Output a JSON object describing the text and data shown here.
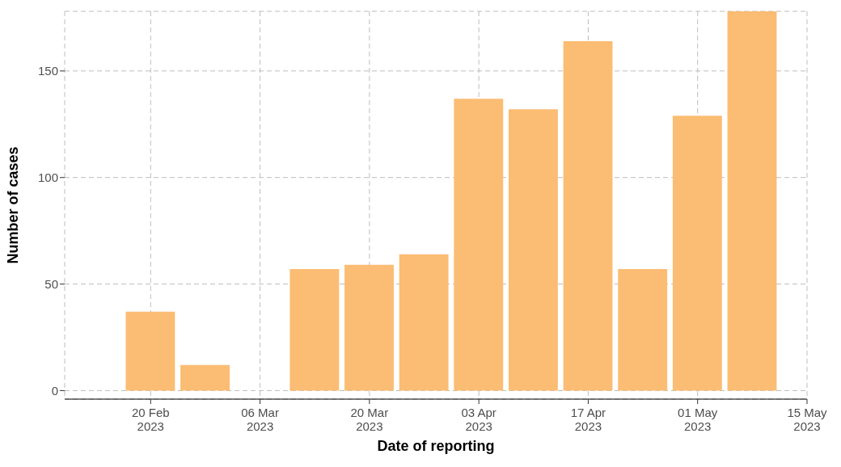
{
  "chart_data": {
    "type": "bar",
    "xlabel": "Date of reporting",
    "ylabel": "Number of cases",
    "x": [
      "2023-02-20",
      "2023-02-27",
      "2023-03-06",
      "2023-03-13",
      "2023-03-20",
      "2023-03-27",
      "2023-04-03",
      "2023-04-10",
      "2023-04-17",
      "2023-04-24",
      "2023-05-01",
      "2023-05-08"
    ],
    "values": [
      37,
      12,
      0,
      57,
      59,
      64,
      137,
      132,
      164,
      57,
      129,
      178
    ],
    "color": "#fbbc73",
    "xlim": [
      "2023-02-09",
      "2023-05-15"
    ],
    "xticks": [
      {
        "value": "2023-02-20",
        "label": "20 Feb 2023"
      },
      {
        "value": "2023-03-06",
        "label": "06 Mar 2023"
      },
      {
        "value": "2023-03-20",
        "label": "20 Mar 2023"
      },
      {
        "value": "2023-04-03",
        "label": "03 Apr 2023"
      },
      {
        "value": "2023-04-17",
        "label": "17 Apr 2023"
      },
      {
        "value": "2023-05-01",
        "label": "01 May 2023"
      },
      {
        "value": "2023-05-15",
        "label": "15 May 2023"
      }
    ],
    "ylim": [
      -4,
      178
    ],
    "yticks": [
      0,
      50,
      100,
      150
    ],
    "grid": true,
    "line_style": "dashed"
  }
}
